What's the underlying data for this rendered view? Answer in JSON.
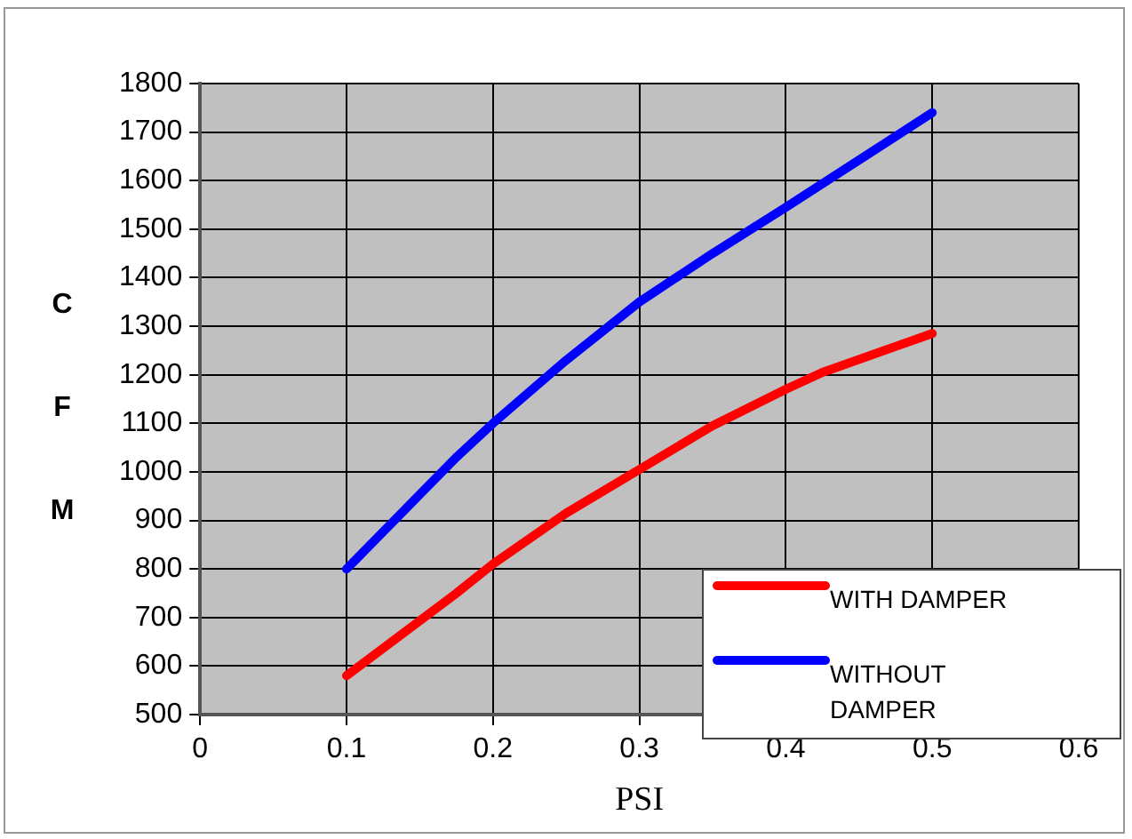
{
  "chart_data": {
    "type": "line",
    "xlabel": "PSI",
    "ylabel": "CFM",
    "xlim": [
      0,
      0.6
    ],
    "xticks": [
      0,
      0.1,
      0.2,
      0.3,
      0.4,
      0.5,
      0.6
    ],
    "ylim": [
      500,
      1800
    ],
    "yticks": [
      500,
      600,
      700,
      800,
      900,
      1000,
      1100,
      1200,
      1300,
      1400,
      1500,
      1600,
      1700,
      1800
    ],
    "grid": true,
    "legend": "bottom right",
    "marker": "none",
    "line_style": "solid",
    "series": [
      {
        "name": "WITH DAMPER",
        "color": "#ff0000",
        "x": [
          0.1,
          0.175,
          0.2,
          0.25,
          0.3,
          0.35,
          0.4,
          0.425,
          0.5
        ],
        "values": [
          580,
          750,
          810,
          915,
          1005,
          1095,
          1170,
          1205,
          1285
        ]
      },
      {
        "name": "WITHOUT DAMPER",
        "color": "#0000ff",
        "x": [
          0.1,
          0.175,
          0.2,
          0.25,
          0.3,
          0.35,
          0.4,
          0.5
        ],
        "values": [
          800,
          1030,
          1100,
          1230,
          1350,
          1450,
          1545,
          1740
        ]
      }
    ]
  }
}
